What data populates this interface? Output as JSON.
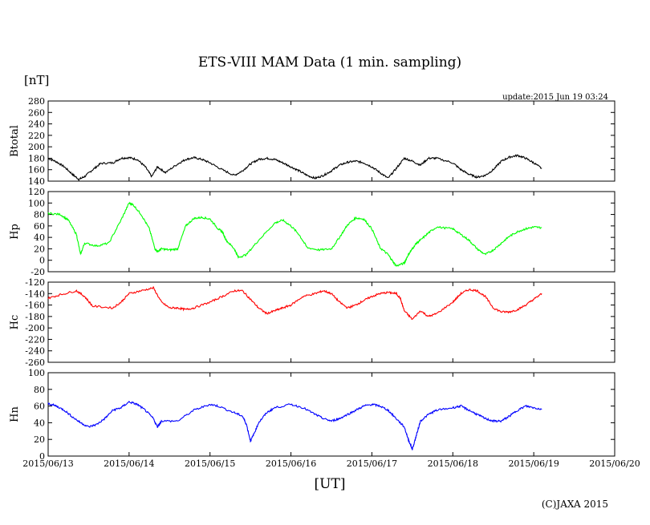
{
  "chart_data": {
    "type": "line",
    "title": "ETS-VIII MAM Data (1 min. sampling)",
    "unit_label": "[nT]",
    "update_label": "update:2015 Jun 19 03:24",
    "xlabel": "[UT]",
    "copyright": "(C)JAXA 2015",
    "x_ticks": [
      "2015/06/13",
      "2015/06/14",
      "2015/06/15",
      "2015/06/16",
      "2015/06/17",
      "2015/06/18",
      "2015/06/19",
      "2015/06/20"
    ],
    "xlim": [
      0,
      7
    ],
    "x_unit": "days since 2015/06/13 00:00 UT",
    "panels": [
      {
        "name": "Btotal",
        "color": "#000000",
        "ylim": [
          140,
          280
        ],
        "yticks": [
          140,
          160,
          180,
          200,
          220,
          240,
          260,
          280
        ],
        "series": {
          "x": [
            0.0,
            0.1,
            0.2,
            0.3,
            0.38,
            0.45,
            0.55,
            0.65,
            0.8,
            0.9,
            1.0,
            1.1,
            1.2,
            1.28,
            1.35,
            1.45,
            1.6,
            1.7,
            1.8,
            1.9,
            2.0,
            2.15,
            2.3,
            2.4,
            2.5,
            2.6,
            2.7,
            2.8,
            2.9,
            3.0,
            3.1,
            3.2,
            3.3,
            3.4,
            3.5,
            3.6,
            3.7,
            3.8,
            3.9,
            4.0,
            4.1,
            4.2,
            4.3,
            4.4,
            4.5,
            4.6,
            4.7,
            4.8,
            5.0,
            5.1,
            5.2,
            5.3,
            5.4,
            5.5,
            5.6,
            5.7,
            5.8,
            5.9,
            6.0,
            6.1
          ],
          "y": [
            180,
            174,
            165,
            152,
            143,
            148,
            160,
            171,
            172,
            180,
            181,
            178,
            165,
            148,
            165,
            155,
            170,
            178,
            181,
            178,
            172,
            160,
            150,
            158,
            170,
            178,
            180,
            178,
            172,
            165,
            158,
            150,
            145,
            150,
            158,
            168,
            173,
            175,
            172,
            165,
            155,
            145,
            162,
            180,
            175,
            168,
            180,
            180,
            172,
            160,
            152,
            147,
            150,
            160,
            175,
            182,
            185,
            180,
            172,
            162
          ]
        }
      },
      {
        "name": "Hp",
        "color": "#00ff00",
        "ylim": [
          -20,
          120
        ],
        "yticks": [
          -20,
          0,
          20,
          40,
          60,
          80,
          100,
          120
        ],
        "series": {
          "x": [
            0.0,
            0.15,
            0.25,
            0.35,
            0.4,
            0.45,
            0.6,
            0.75,
            0.9,
            1.0,
            1.05,
            1.15,
            1.25,
            1.32,
            1.35,
            1.4,
            1.5,
            1.6,
            1.7,
            1.8,
            1.9,
            2.0,
            2.1,
            2.15,
            2.2,
            2.3,
            2.35,
            2.45,
            2.6,
            2.8,
            2.9,
            3.0,
            3.1,
            3.2,
            3.35,
            3.5,
            3.6,
            3.7,
            3.8,
            3.9,
            4.0,
            4.1,
            4.2,
            4.25,
            4.3,
            4.4,
            4.45,
            4.5,
            4.55,
            4.6,
            4.7,
            4.8,
            5.0,
            5.1,
            5.2,
            5.3,
            5.4,
            5.5,
            5.6,
            5.7,
            5.8,
            5.9,
            6.0,
            6.1
          ],
          "y": [
            82,
            80,
            70,
            45,
            10,
            30,
            25,
            30,
            70,
            100,
            97,
            80,
            55,
            20,
            15,
            20,
            18,
            20,
            60,
            73,
            75,
            72,
            55,
            50,
            35,
            20,
            5,
            10,
            35,
            65,
            70,
            60,
            45,
            22,
            18,
            20,
            40,
            62,
            74,
            72,
            55,
            22,
            10,
            0,
            -10,
            -5,
            10,
            20,
            30,
            35,
            48,
            58,
            55,
            45,
            35,
            20,
            10,
            18,
            30,
            42,
            50,
            55,
            58,
            57
          ]
        }
      },
      {
        "name": "Hc",
        "color": "#ff0000",
        "ylim": [
          -260,
          -120
        ],
        "yticks": [
          -260,
          -240,
          -220,
          -200,
          -180,
          -160,
          -140,
          -120
        ],
        "series": {
          "x": [
            0.0,
            0.15,
            0.35,
            0.45,
            0.55,
            0.8,
            0.9,
            1.0,
            1.15,
            1.3,
            1.4,
            1.5,
            1.6,
            1.7,
            1.8,
            2.0,
            2.15,
            2.3,
            2.4,
            2.5,
            2.6,
            2.7,
            2.8,
            2.9,
            3.0,
            3.15,
            3.3,
            3.4,
            3.5,
            3.6,
            3.7,
            3.8,
            3.9,
            4.0,
            4.1,
            4.2,
            4.3,
            4.35,
            4.4,
            4.5,
            4.6,
            4.7,
            4.8,
            5.0,
            5.1,
            5.2,
            5.3,
            5.4,
            5.5,
            5.6,
            5.7,
            5.8,
            5.9,
            6.0,
            6.1
          ],
          "y": [
            -148,
            -142,
            -135,
            -145,
            -162,
            -165,
            -155,
            -140,
            -135,
            -130,
            -155,
            -165,
            -165,
            -168,
            -165,
            -155,
            -145,
            -135,
            -135,
            -150,
            -165,
            -175,
            -170,
            -165,
            -160,
            -145,
            -140,
            -135,
            -140,
            -155,
            -165,
            -160,
            -152,
            -145,
            -140,
            -138,
            -140,
            -148,
            -170,
            -185,
            -170,
            -180,
            -175,
            -155,
            -140,
            -133,
            -135,
            -145,
            -165,
            -172,
            -172,
            -168,
            -160,
            -150,
            -140
          ]
        }
      },
      {
        "name": "Hn",
        "color": "#0000ff",
        "ylim": [
          0,
          100
        ],
        "yticks": [
          0,
          20,
          40,
          60,
          80,
          100
        ],
        "series": {
          "x": [
            0.0,
            0.1,
            0.2,
            0.3,
            0.4,
            0.5,
            0.6,
            0.7,
            0.8,
            0.9,
            1.0,
            1.1,
            1.2,
            1.3,
            1.35,
            1.4,
            1.6,
            1.8,
            2.0,
            2.1,
            2.3,
            2.4,
            2.45,
            2.5,
            2.55,
            2.6,
            2.7,
            2.8,
            3.0,
            3.15,
            3.3,
            3.4,
            3.5,
            3.6,
            3.7,
            3.8,
            3.9,
            4.0,
            4.1,
            4.2,
            4.3,
            4.4,
            4.45,
            4.5,
            4.55,
            4.6,
            4.7,
            4.8,
            5.0,
            5.1,
            5.2,
            5.3,
            5.4,
            5.5,
            5.6,
            5.7,
            5.8,
            5.9,
            6.0,
            6.1
          ],
          "y": [
            63,
            60,
            55,
            47,
            40,
            35,
            38,
            45,
            55,
            58,
            65,
            62,
            55,
            45,
            35,
            42,
            42,
            55,
            62,
            60,
            52,
            48,
            38,
            18,
            28,
            40,
            52,
            58,
            62,
            58,
            50,
            45,
            42,
            45,
            50,
            55,
            60,
            62,
            60,
            55,
            45,
            35,
            20,
            8,
            25,
            42,
            50,
            55,
            58,
            60,
            55,
            50,
            45,
            42,
            42,
            48,
            55,
            60,
            58,
            56
          ]
        }
      }
    ]
  }
}
